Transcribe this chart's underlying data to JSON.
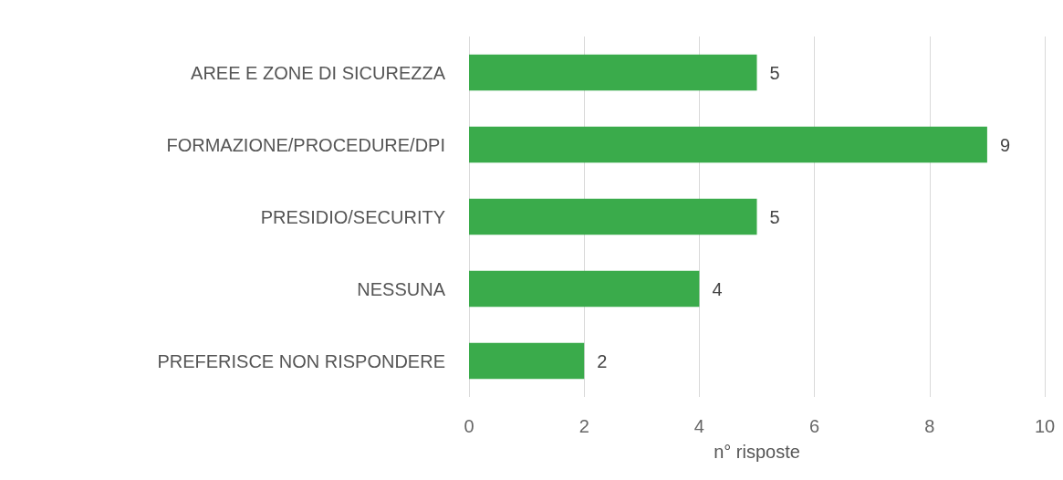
{
  "chart_data": {
    "type": "bar",
    "orientation": "horizontal",
    "categories": [
      "AREE E ZONE DI SICUREZZA",
      "FORMAZIONE/PROCEDURE/DPI",
      "PRESIDIO/SECURITY",
      "NESSUNA",
      "PREFERISCE NON RISPONDERE"
    ],
    "values": [
      5,
      9,
      5,
      4,
      2
    ],
    "color": "#3aab4b",
    "xlim": [
      0,
      10
    ],
    "xticks": [
      0,
      2,
      4,
      6,
      8,
      10
    ],
    "xlabel": "n° risposte",
    "grid": "x",
    "data_labels": true
  }
}
